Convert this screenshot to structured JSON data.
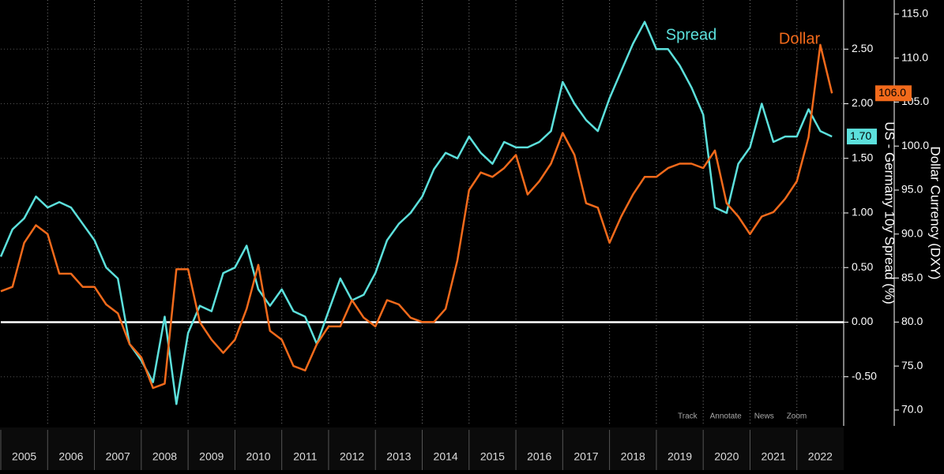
{
  "chart_data": {
    "type": "line",
    "x": [
      2005.0,
      2005.25,
      2005.5,
      2005.75,
      2006.0,
      2006.25,
      2006.5,
      2006.75,
      2007.0,
      2007.25,
      2007.5,
      2007.75,
      2008.0,
      2008.25,
      2008.5,
      2008.75,
      2009.0,
      2009.25,
      2009.5,
      2009.75,
      2010.0,
      2010.25,
      2010.5,
      2010.75,
      2011.0,
      2011.25,
      2011.5,
      2011.75,
      2012.0,
      2012.25,
      2012.5,
      2012.75,
      2013.0,
      2013.25,
      2013.5,
      2013.75,
      2014.0,
      2014.25,
      2014.5,
      2014.75,
      2015.0,
      2015.25,
      2015.5,
      2015.75,
      2016.0,
      2016.25,
      2016.5,
      2016.75,
      2017.0,
      2017.25,
      2017.5,
      2017.75,
      2018.0,
      2018.25,
      2018.5,
      2018.75,
      2019.0,
      2019.25,
      2019.5,
      2019.75,
      2020.0,
      2020.25,
      2020.5,
      2020.75,
      2021.0,
      2021.25,
      2021.5,
      2021.75,
      2022.0,
      2022.25,
      2022.5,
      2022.75
    ],
    "series": [
      {
        "name": "Spread",
        "color": "#5ce0dc",
        "axis": "y",
        "values": [
          0.6,
          0.85,
          0.95,
          1.15,
          1.05,
          1.1,
          1.05,
          0.9,
          0.75,
          0.5,
          0.4,
          -0.2,
          -0.35,
          -0.55,
          0.05,
          -0.75,
          -0.1,
          0.15,
          0.1,
          0.45,
          0.5,
          0.7,
          0.3,
          0.15,
          0.3,
          0.1,
          0.05,
          -0.2,
          0.1,
          0.4,
          0.2,
          0.25,
          0.45,
          0.75,
          0.9,
          1.0,
          1.15,
          1.4,
          1.55,
          1.5,
          1.7,
          1.55,
          1.45,
          1.65,
          1.6,
          1.6,
          1.65,
          1.75,
          2.2,
          2.0,
          1.85,
          1.75,
          2.05,
          2.3,
          2.55,
          2.75,
          2.5,
          2.5,
          2.35,
          2.15,
          1.9,
          1.05,
          1.0,
          1.45,
          1.6,
          2.0,
          1.65,
          1.7,
          1.7,
          1.95,
          1.75,
          1.7
        ],
        "value_labels": [
          null,
          null,
          null,
          null,
          null,
          null,
          null,
          null,
          null,
          null,
          null,
          null,
          null,
          null,
          null,
          null,
          null,
          null,
          null,
          null,
          null,
          null,
          null,
          null,
          null,
          null,
          null,
          null,
          null,
          null,
          null,
          null,
          null,
          null,
          null,
          null,
          null,
          null,
          null,
          null,
          null,
          null,
          null,
          null,
          null,
          null,
          null,
          null,
          null,
          null,
          null,
          null,
          null,
          null,
          null,
          null,
          null,
          null,
          null,
          null,
          null,
          null,
          null,
          null,
          null,
          null,
          null,
          null,
          null,
          null,
          null,
          "1.70"
        ]
      },
      {
        "name": "Dollar",
        "color": "#f26a1b",
        "axis": "y2",
        "values": [
          83.5,
          84,
          89,
          91,
          90,
          85.5,
          85.5,
          84,
          84,
          82,
          81,
          77.5,
          76,
          72.5,
          73,
          86,
          86,
          80,
          78,
          76.5,
          78,
          81.5,
          86.5,
          79,
          78,
          75,
          74.5,
          77.5,
          79.5,
          79.5,
          82.5,
          80.5,
          79.5,
          82.5,
          82,
          80.5,
          80,
          80,
          81.5,
          87,
          95,
          97,
          96.5,
          97.5,
          99,
          94.5,
          96,
          98,
          101.5,
          99,
          93.5,
          93,
          89,
          92,
          94.5,
          96.5,
          96.5,
          97.5,
          98,
          98,
          97.5,
          99.5,
          93.5,
          92,
          90,
          92,
          92.5,
          94,
          96,
          101,
          111.5,
          106.0
        ],
        "value_labels": [
          null,
          null,
          null,
          null,
          null,
          null,
          null,
          null,
          null,
          null,
          null,
          null,
          null,
          null,
          null,
          null,
          null,
          null,
          null,
          null,
          null,
          null,
          null,
          null,
          null,
          null,
          null,
          null,
          null,
          null,
          null,
          null,
          null,
          null,
          null,
          null,
          null,
          null,
          null,
          null,
          null,
          null,
          null,
          null,
          null,
          null,
          null,
          null,
          null,
          null,
          null,
          null,
          null,
          null,
          null,
          null,
          null,
          null,
          null,
          null,
          null,
          null,
          null,
          null,
          null,
          null,
          null,
          null,
          null,
          null,
          null,
          "106.0"
        ]
      }
    ],
    "xlim": [
      2005.0,
      2023.0
    ],
    "xticks": [
      2005,
      2006,
      2007,
      2008,
      2009,
      2010,
      2011,
      2012,
      2013,
      2014,
      2015,
      2016,
      2017,
      2018,
      2019,
      2020,
      2021,
      2022
    ],
    "ylim": [
      -0.95,
      2.95
    ],
    "yticks": [
      {
        "value": -0.5,
        "label": "-0.50"
      },
      {
        "value": 0,
        "label": "0.00"
      },
      {
        "value": 0.5,
        "label": "0.50"
      },
      {
        "value": 1,
        "label": "1.00"
      },
      {
        "value": 1.5,
        "label": "1.50"
      },
      {
        "value": 2,
        "label": "2.00"
      },
      {
        "value": 2.5,
        "label": "2.50"
      }
    ],
    "y2lim": [
      68.2,
      116.6
    ],
    "y2ticks": [
      {
        "value": 70,
        "label": "70.0"
      },
      {
        "value": 75,
        "label": "75.0"
      },
      {
        "value": 80,
        "label": "80.0"
      },
      {
        "value": 85,
        "label": "85.0"
      },
      {
        "value": 90,
        "label": "90.0"
      },
      {
        "value": 95,
        "label": "95.0"
      },
      {
        "value": 100,
        "label": "100.0"
      },
      {
        "value": 105,
        "label": "105.0"
      },
      {
        "value": 110,
        "label": "110.0"
      },
      {
        "value": 115,
        "label": "115.0"
      }
    ],
    "ylabel": "US - Germany 10y Spread (%)",
    "y2label": "Dollar Currency (DXY)",
    "grid": true
  },
  "toolbar": [
    "Track",
    "Annotate",
    "News",
    "Zoom"
  ]
}
